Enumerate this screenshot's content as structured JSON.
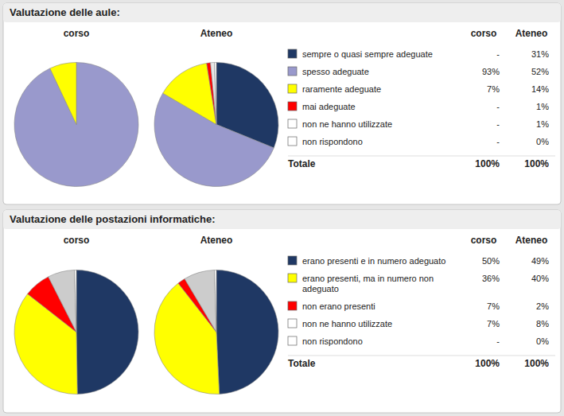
{
  "chart_data": [
    {
      "type": "pie",
      "title": "Valutazione delle aule:",
      "categories": [
        "sempre o quasi sempre adeguate",
        "spesso adeguate",
        "raramente adeguate",
        "mai adeguate",
        "non ne hanno utilizzate",
        "non rispondono"
      ],
      "colors": [
        "#1f3864",
        "#9999cc",
        "#ffff00",
        "#ff0000",
        "#ffffff",
        "#ffffff"
      ],
      "total_name": "Totale",
      "series": [
        {
          "name": "corso",
          "values": [
            null,
            93,
            7,
            null,
            null,
            null
          ],
          "value_labels": [
            "-",
            "93%",
            "7%",
            "-",
            "-",
            "-"
          ],
          "colors": [
            null,
            "#9999cc",
            "#ffff00",
            null,
            null,
            null
          ],
          "total": {
            "value": 100,
            "label": "100%"
          }
        },
        {
          "name": "Ateneo",
          "values": [
            31,
            52,
            14,
            1,
            1,
            0.5
          ],
          "value_labels": [
            "31%",
            "52%",
            "14%",
            "1%",
            "1%",
            "0%"
          ],
          "colors": [
            "#1f3864",
            "#9999cc",
            "#ffff00",
            "#ff0000",
            "#e8e8e8",
            "#ffffff"
          ],
          "total": {
            "value": 100,
            "label": "100%"
          }
        }
      ]
    },
    {
      "type": "pie",
      "title": "Valutazione delle postazioni informatiche:",
      "categories": [
        "erano presenti e in numero adeguato",
        "erano presenti, ma in numero non\nadeguato",
        "non erano presenti",
        "non ne hanno utilizzate",
        "non rispondono"
      ],
      "colors": [
        "#1f3864",
        "#ffff00",
        "#ff0000",
        "#ffffff",
        "#ffffff"
      ],
      "total_name": "Totale",
      "series": [
        {
          "name": "corso",
          "values": [
            50,
            36,
            7,
            7,
            0.5
          ],
          "value_labels": [
            "50%",
            "36%",
            "7%",
            "7%",
            "-"
          ],
          "colors": [
            "#1f3864",
            "#ffff00",
            "#ff0000",
            "#cccccc",
            "#ffffff"
          ],
          "total": {
            "value": 100,
            "label": "100%"
          }
        },
        {
          "name": "Ateneo",
          "values": [
            49,
            40,
            2,
            8,
            0.5
          ],
          "value_labels": [
            "49%",
            "40%",
            "2%",
            "8%",
            "0%"
          ],
          "colors": [
            "#1f3864",
            "#ffff00",
            "#ff0000",
            "#cccccc",
            "#ffffff"
          ],
          "total": {
            "value": 100,
            "label": "100%"
          }
        }
      ]
    }
  ]
}
